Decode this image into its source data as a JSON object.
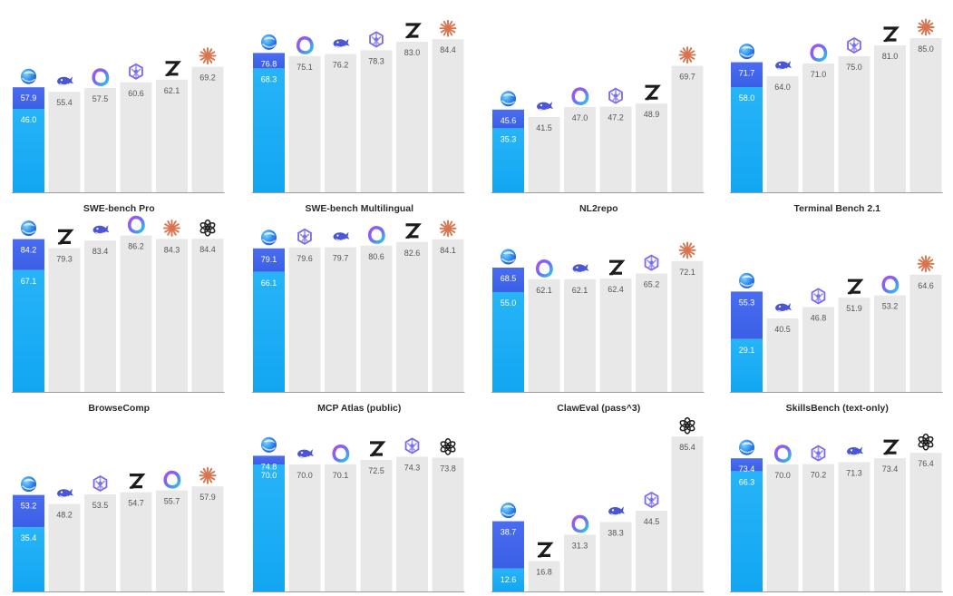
{
  "colors": {
    "highlight_top": "#3d63e8",
    "highlight_bottom": "#1fb6f5",
    "gray_bar": "#e8e8e8",
    "axis": "#9a9a9a",
    "text": "#2b2b2b",
    "value_text": "#555555"
  },
  "chart_data": [
    {
      "type": "bar",
      "title": "SWE-bench Pro",
      "ylim": [
        0,
        100
      ],
      "bars": [
        {
          "icon": "blue-globe-icon",
          "value": 57.9,
          "inner": 46.0,
          "highlight": true
        },
        {
          "icon": "whale-icon",
          "value": 55.4
        },
        {
          "icon": "ring-icon",
          "value": 57.5
        },
        {
          "icon": "hexagon-knot-icon",
          "value": 60.6
        },
        {
          "icon": "z-logo-icon",
          "value": 62.1
        },
        {
          "icon": "starburst-icon",
          "value": 69.2
        }
      ]
    },
    {
      "type": "bar",
      "title": "SWE-bench Multilingual",
      "ylim": [
        0,
        100
      ],
      "bars": [
        {
          "icon": "blue-globe-icon",
          "value": 76.8,
          "inner": 68.3,
          "highlight": true
        },
        {
          "icon": "ring-icon",
          "value": 75.1
        },
        {
          "icon": "whale-icon",
          "value": 76.2
        },
        {
          "icon": "hexagon-knot-icon",
          "value": 78.3
        },
        {
          "icon": "z-logo-icon",
          "value": 83.0
        },
        {
          "icon": "starburst-icon",
          "value": 84.4
        }
      ]
    },
    {
      "type": "bar",
      "title": "NL2repo",
      "ylim": [
        0,
        100
      ],
      "bars": [
        {
          "icon": "blue-globe-icon",
          "value": 45.6,
          "inner": 35.3,
          "highlight": true
        },
        {
          "icon": "whale-icon",
          "value": 41.5
        },
        {
          "icon": "ring-icon",
          "value": 47.0
        },
        {
          "icon": "hexagon-knot-icon",
          "value": 47.2
        },
        {
          "icon": "z-logo-icon",
          "value": 48.9
        },
        {
          "icon": "starburst-icon",
          "value": 69.7
        }
      ]
    },
    {
      "type": "bar",
      "title": "Terminal Bench 2.1",
      "ylim": [
        0,
        100
      ],
      "bars": [
        {
          "icon": "blue-globe-icon",
          "value": 71.7,
          "inner": 58.0,
          "highlight": true
        },
        {
          "icon": "whale-icon",
          "value": 64.0
        },
        {
          "icon": "ring-icon",
          "value": 71.0
        },
        {
          "icon": "hexagon-knot-icon",
          "value": 75.0
        },
        {
          "icon": "z-logo-icon",
          "value": 81.0
        },
        {
          "icon": "starburst-icon",
          "value": 85.0
        }
      ]
    },
    {
      "type": "bar",
      "title": "BrowseComp",
      "ylim": [
        0,
        100
      ],
      "bars": [
        {
          "icon": "blue-globe-icon",
          "value": 84.2,
          "inner": 67.1,
          "highlight": true
        },
        {
          "icon": "z-logo-icon",
          "value": 79.3
        },
        {
          "icon": "whale-icon",
          "value": 83.4
        },
        {
          "icon": "ring-icon",
          "value": 86.2
        },
        {
          "icon": "starburst-icon",
          "value": 84.3
        },
        {
          "icon": "openai-knot-icon",
          "value": 84.4
        }
      ]
    },
    {
      "type": "bar",
      "title": "MCP Atlas (public)",
      "ylim": [
        0,
        100
      ],
      "bars": [
        {
          "icon": "blue-globe-icon",
          "value": 79.1,
          "inner": 66.1,
          "highlight": true
        },
        {
          "icon": "hexagon-knot-icon",
          "value": 79.6
        },
        {
          "icon": "whale-icon",
          "value": 79.7
        },
        {
          "icon": "ring-icon",
          "value": 80.6
        },
        {
          "icon": "z-logo-icon",
          "value": 82.6
        },
        {
          "icon": "starburst-icon",
          "value": 84.1
        }
      ]
    },
    {
      "type": "bar",
      "title": "ClawEval (pass^3)",
      "ylim": [
        0,
        100
      ],
      "bars": [
        {
          "icon": "blue-globe-icon",
          "value": 68.5,
          "inner": 55.0,
          "highlight": true
        },
        {
          "icon": "ring-icon",
          "value": 62.1
        },
        {
          "icon": "whale-icon",
          "value": 62.1
        },
        {
          "icon": "z-logo-icon",
          "value": 62.4
        },
        {
          "icon": "hexagon-knot-icon",
          "value": 65.2
        },
        {
          "icon": "starburst-icon",
          "value": 72.1
        }
      ]
    },
    {
      "type": "bar",
      "title": "SkillsBench (text-only)",
      "ylim": [
        0,
        100
      ],
      "bars": [
        {
          "icon": "blue-globe-icon",
          "value": 55.3,
          "inner": 29.1,
          "highlight": true
        },
        {
          "icon": "whale-icon",
          "value": 40.5
        },
        {
          "icon": "hexagon-knot-icon",
          "value": 46.8
        },
        {
          "icon": "z-logo-icon",
          "value": 51.9
        },
        {
          "icon": "ring-icon",
          "value": 53.2
        },
        {
          "icon": "starburst-icon",
          "value": 64.6
        }
      ]
    },
    {
      "type": "bar",
      "title": "",
      "ylim": [
        0,
        100
      ],
      "bars": [
        {
          "icon": "blue-globe-icon",
          "value": 53.2,
          "inner": 35.4,
          "highlight": true
        },
        {
          "icon": "whale-icon",
          "value": 48.2
        },
        {
          "icon": "hexagon-knot-icon",
          "value": 53.5
        },
        {
          "icon": "z-logo-icon",
          "value": 54.7
        },
        {
          "icon": "ring-icon",
          "value": 55.7
        },
        {
          "icon": "starburst-icon",
          "value": 57.9
        }
      ]
    },
    {
      "type": "bar",
      "title": "",
      "ylim": [
        0,
        100
      ],
      "bars": [
        {
          "icon": "blue-globe-icon",
          "value": 74.8,
          "inner": 70.0,
          "highlight": true
        },
        {
          "icon": "whale-icon",
          "value": 70.0
        },
        {
          "icon": "ring-icon",
          "value": 70.1
        },
        {
          "icon": "z-logo-icon",
          "value": 72.5
        },
        {
          "icon": "hexagon-knot-icon",
          "value": 74.3
        },
        {
          "icon": "openai-knot-icon",
          "value": 73.8
        }
      ]
    },
    {
      "type": "bar",
      "title": "",
      "ylim": [
        0,
        100
      ],
      "bars": [
        {
          "icon": "blue-globe-icon",
          "value": 38.7,
          "inner": 12.6,
          "highlight": true
        },
        {
          "icon": "z-logo-icon",
          "value": 16.8
        },
        {
          "icon": "ring-icon",
          "value": 31.3
        },
        {
          "icon": "whale-icon",
          "value": 38.3
        },
        {
          "icon": "hexagon-knot-icon",
          "value": 44.5
        },
        {
          "icon": "openai-knot-icon",
          "value": 85.4
        }
      ]
    },
    {
      "type": "bar",
      "title": "",
      "ylim": [
        0,
        100
      ],
      "bars": [
        {
          "icon": "blue-globe-icon",
          "value": 73.4,
          "inner": 66.3,
          "highlight": true
        },
        {
          "icon": "ring-icon",
          "value": 70.0
        },
        {
          "icon": "hexagon-knot-icon",
          "value": 70.2
        },
        {
          "icon": "whale-icon",
          "value": 71.3
        },
        {
          "icon": "z-logo-icon",
          "value": 73.4
        },
        {
          "icon": "openai-knot-icon",
          "value": 76.4
        }
      ]
    }
  ]
}
